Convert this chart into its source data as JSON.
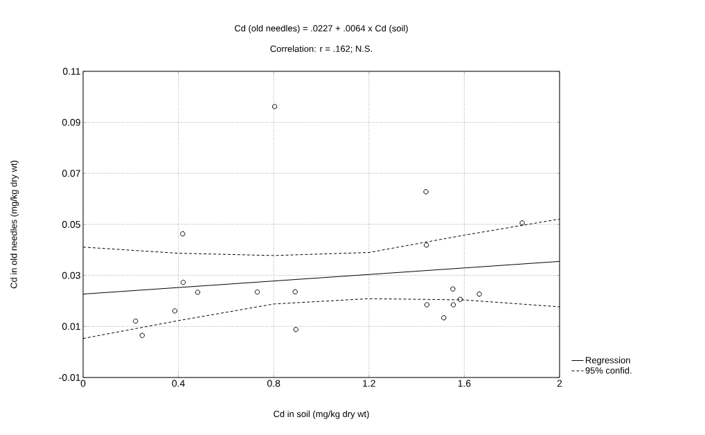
{
  "chart_data": {
    "type": "scatter",
    "title": "Cd (old needles) = .0227 + .0064 x Cd (soil)",
    "subtitle": "Correlation: r = .162; N.S.",
    "xlabel": "Cd in soil (mg/kg dry wt)",
    "ylabel": "Cd in old needles (mg/kg dry wt)",
    "xlim": [
      0,
      2
    ],
    "ylim": [
      -0.01,
      0.11
    ],
    "xticks": [
      0,
      0.4,
      0.8,
      1.2,
      1.6,
      2
    ],
    "yticks": [
      -0.01,
      0.01,
      0.03,
      0.05,
      0.07,
      0.09,
      0.11
    ],
    "grid": true,
    "legend": "bottom right",
    "series": [
      {
        "marker": "circle",
        "color": "#000000",
        "x": [
          0.22,
          0.248,
          0.385,
          0.418,
          0.42,
          0.481,
          0.731,
          0.804,
          0.89,
          0.893,
          1.439,
          1.441,
          1.443,
          1.514,
          1.552,
          1.554,
          1.583,
          1.663,
          1.843
        ],
        "values": [
          0.0121,
          0.0065,
          0.0161,
          0.0463,
          0.0273,
          0.0234,
          0.0235,
          0.0962,
          0.0236,
          0.0088,
          0.0628,
          0.0419,
          0.0185,
          0.0134,
          0.0247,
          0.0185,
          0.0206,
          0.0227,
          0.0506
        ]
      },
      {
        "type": "line",
        "name": "Regression",
        "marker": "none",
        "line_style": "solid",
        "color": "#000000",
        "x": [
          0,
          2
        ],
        "values": [
          0.0227,
          0.0355
        ]
      },
      {
        "type": "line",
        "name": "95% confid.",
        "marker": "none",
        "line_style": "dashed",
        "color": "#000000",
        "x": [
          0,
          0.4,
          0.8,
          1.2,
          1.6,
          2
        ],
        "values": [
          0.0411,
          0.0387,
          0.0378,
          0.039,
          0.0458,
          0.0521
        ]
      },
      {
        "type": "line",
        "marker": "none",
        "line_style": "dashed",
        "color": "#000000",
        "x": [
          0,
          0.4,
          0.8,
          1.2,
          1.6,
          2
        ],
        "values": [
          0.0053,
          0.0123,
          0.0188,
          0.0209,
          0.0204,
          0.0177
        ]
      }
    ]
  }
}
